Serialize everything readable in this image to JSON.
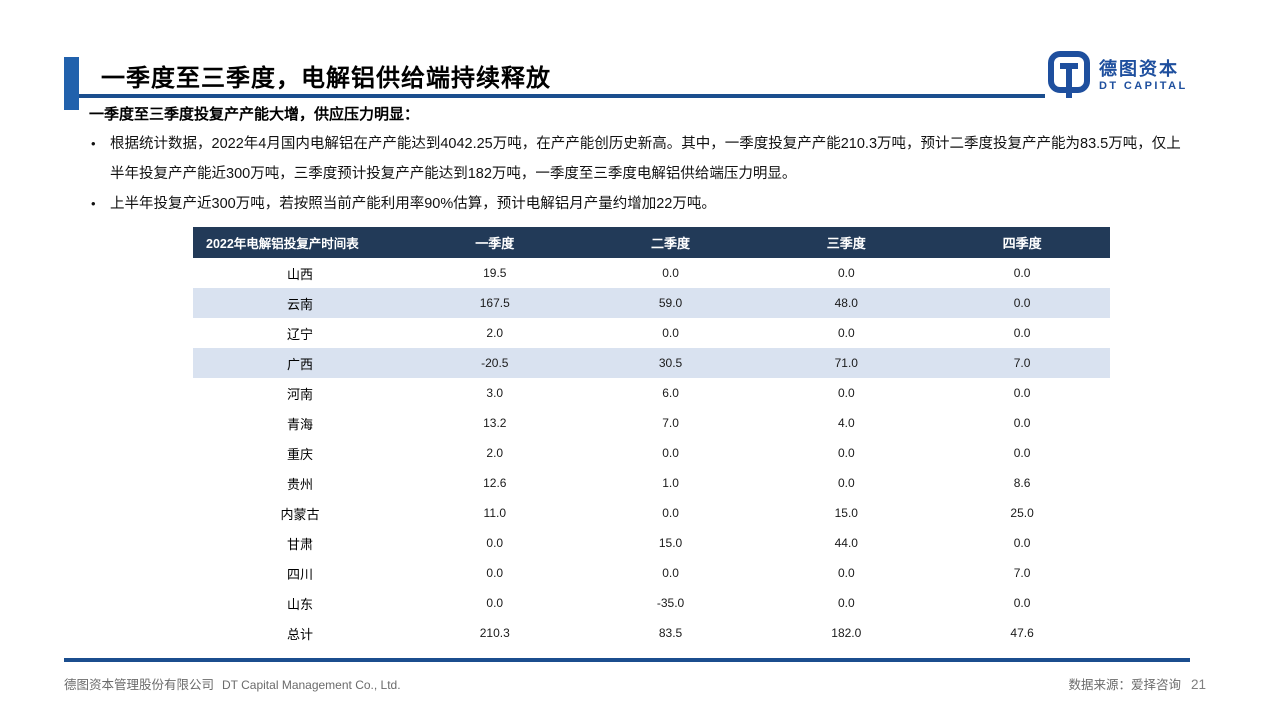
{
  "header": {
    "title": "一季度至三季度，电解铝供给端持续释放"
  },
  "logo": {
    "company_cn": "德图资本",
    "company_en": "DT CAPITAL"
  },
  "content": {
    "lead": "一季度至三季度投复产产能大增，供应压力明显：",
    "bullet_char": "•",
    "bullets": [
      "根据统计数据，2022年4月国内电解铝在产产能达到4042.25万吨，在产产能创历史新高。其中，一季度投复产产能210.3万吨，预计二季度投复产产能为83.5万吨，仅上半年投复产产能近300万吨，三季度预计投复产产能达到182万吨，一季度至三季度电解铝供给端压力明显。",
      "上半年投复产近300万吨，若按照当前产能利用率90%估算，预计电解铝月产量约增加22万吨。"
    ]
  },
  "table": {
    "corner_header": "2022年电解铝投复产时间表",
    "columns": [
      "一季度",
      "二季度",
      "三季度",
      "四季度"
    ],
    "rows": [
      {
        "region": "山西",
        "values": [
          "19.5",
          "0.0",
          "0.0",
          "0.0"
        ],
        "shaded": false
      },
      {
        "region": "云南",
        "values": [
          "167.5",
          "59.0",
          "48.0",
          "0.0"
        ],
        "shaded": true
      },
      {
        "region": "辽宁",
        "values": [
          "2.0",
          "0.0",
          "0.0",
          "0.0"
        ],
        "shaded": false
      },
      {
        "region": "广西",
        "values": [
          "-20.5",
          "30.5",
          "71.0",
          "7.0"
        ],
        "shaded": true
      },
      {
        "region": "河南",
        "values": [
          "3.0",
          "6.0",
          "0.0",
          "0.0"
        ],
        "shaded": false
      },
      {
        "region": "青海",
        "values": [
          "13.2",
          "7.0",
          "4.0",
          "0.0"
        ],
        "shaded": false
      },
      {
        "region": "重庆",
        "values": [
          "2.0",
          "0.0",
          "0.0",
          "0.0"
        ],
        "shaded": false
      },
      {
        "region": "贵州",
        "values": [
          "12.6",
          "1.0",
          "0.0",
          "8.6"
        ],
        "shaded": false
      },
      {
        "region": "内蒙古",
        "values": [
          "11.0",
          "0.0",
          "15.0",
          "25.0"
        ],
        "shaded": false
      },
      {
        "region": "甘肃",
        "values": [
          "0.0",
          "15.0",
          "44.0",
          "0.0"
        ],
        "shaded": false
      },
      {
        "region": "四川",
        "values": [
          "0.0",
          "0.0",
          "0.0",
          "7.0"
        ],
        "shaded": false
      },
      {
        "region": "山东",
        "values": [
          "0.0",
          "-35.0",
          "0.0",
          "0.0"
        ],
        "shaded": false
      },
      {
        "region": "总计",
        "values": [
          "210.3",
          "83.5",
          "182.0",
          "47.6"
        ],
        "shaded": false
      }
    ]
  },
  "chart_data": {
    "type": "table",
    "title": "2022年电解铝投复产时间表",
    "categories": [
      "一季度",
      "二季度",
      "三季度",
      "四季度"
    ],
    "series": [
      {
        "name": "山西",
        "values": [
          19.5,
          0.0,
          0.0,
          0.0
        ]
      },
      {
        "name": "云南",
        "values": [
          167.5,
          59.0,
          48.0,
          0.0
        ]
      },
      {
        "name": "辽宁",
        "values": [
          2.0,
          0.0,
          0.0,
          0.0
        ]
      },
      {
        "name": "广西",
        "values": [
          -20.5,
          30.5,
          71.0,
          7.0
        ]
      },
      {
        "name": "河南",
        "values": [
          3.0,
          6.0,
          0.0,
          0.0
        ]
      },
      {
        "name": "青海",
        "values": [
          13.2,
          7.0,
          4.0,
          0.0
        ]
      },
      {
        "name": "重庆",
        "values": [
          2.0,
          0.0,
          0.0,
          0.0
        ]
      },
      {
        "name": "贵州",
        "values": [
          12.6,
          1.0,
          0.0,
          8.6
        ]
      },
      {
        "name": "内蒙古",
        "values": [
          11.0,
          0.0,
          15.0,
          25.0
        ]
      },
      {
        "name": "甘肃",
        "values": [
          0.0,
          15.0,
          44.0,
          0.0
        ]
      },
      {
        "name": "四川",
        "values": [
          0.0,
          0.0,
          0.0,
          7.0
        ]
      },
      {
        "name": "山东",
        "values": [
          0.0,
          -35.0,
          0.0,
          0.0
        ]
      },
      {
        "name": "总计",
        "values": [
          210.3,
          83.5,
          182.0,
          47.6
        ]
      }
    ]
  },
  "footer": {
    "company_cn": "德图资本管理股份有限公司",
    "company_en": "DT Capital Management Co., Ltd.",
    "source": "数据来源：爱择咨询",
    "page": "21"
  },
  "colors": {
    "accent_bar": "#2161AC",
    "title_rule": "#1B4E8E",
    "table_header_bg": "#223A58",
    "row_shade": "#D9E2F0",
    "logo_blue": "#1E4F9E",
    "footer_text": "#6B6B6B",
    "page_number": "#7F7F7F",
    "text": "#000000"
  }
}
